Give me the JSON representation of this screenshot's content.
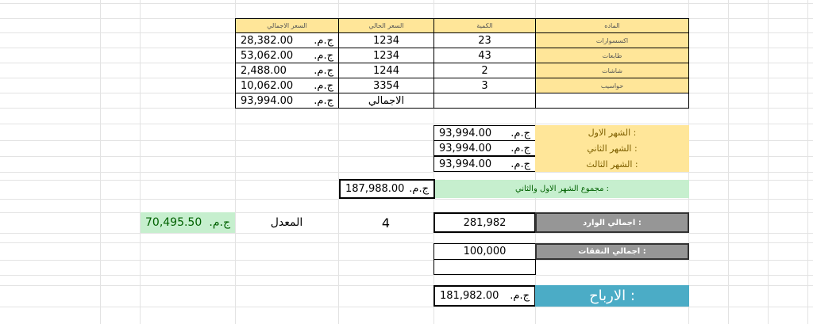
{
  "table": {
    "headers": {
      "material": "الماده",
      "quantity": "الكمية",
      "unit_price": "السعر الحالي",
      "total_price": "السعر الاجمالي"
    },
    "rows": [
      {
        "material": "اكسسوارات",
        "quantity": "23",
        "unit_price": "1234",
        "total": "28,382.00",
        "currency": "ج.م."
      },
      {
        "material": "طابعات",
        "quantity": "43",
        "unit_price": "1234",
        "total": "53,062.00",
        "currency": "ج.م."
      },
      {
        "material": "شاشات",
        "quantity": "2",
        "unit_price": "1244",
        "total": "2,488.00",
        "currency": "ج.م."
      },
      {
        "material": "حواسيب",
        "quantity": "3",
        "unit_price": "3354",
        "total": "10,062.00",
        "currency": "ج.م."
      }
    ],
    "total_label": "الاجمالي",
    "total_value": "93,994.00",
    "total_currency": "ج.م."
  },
  "months": [
    {
      "label": "الشهر الاول :",
      "value": "93,994.00",
      "currency": "ج.م."
    },
    {
      "label": "الشهر الثاني :",
      "value": "93,994.00",
      "currency": "ج.م."
    },
    {
      "label": "الشهر الثالث :",
      "value": "93,994.00",
      "currency": "ج.م."
    }
  ],
  "sum_first_second": {
    "label": "مجموع الشهر الاول والثاني :",
    "value": "187,988.00",
    "currency": "ج.م."
  },
  "income": {
    "label": "اجمالي الوارد :",
    "value": "281,982"
  },
  "average": {
    "count": "4",
    "label": "المعدل",
    "value": "70,495.50",
    "currency": "ج.م."
  },
  "expenses": {
    "label": "اجمالي النفقات :",
    "value": "100,000"
  },
  "profits": {
    "label": "الارباح :",
    "value": "181,982.00",
    "currency": "ج.م."
  },
  "colors": {
    "header_yellow": "#ffe699",
    "green": "#c6efce",
    "gray": "#969696",
    "teal": "#4bacc6"
  }
}
